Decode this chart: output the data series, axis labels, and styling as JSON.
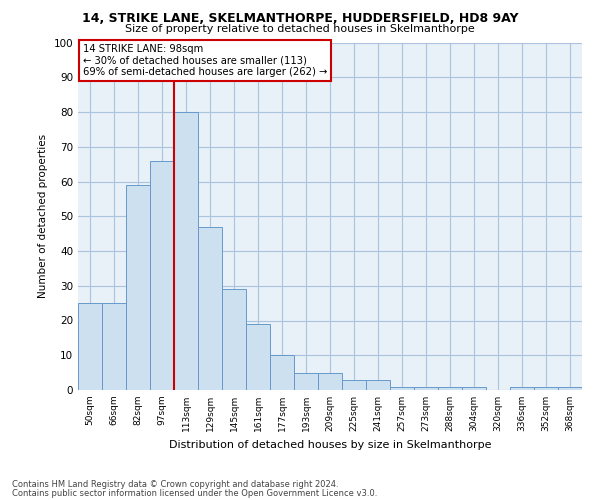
{
  "title1": "14, STRIKE LANE, SKELMANTHORPE, HUDDERSFIELD, HD8 9AY",
  "title2": "Size of property relative to detached houses in Skelmanthorpe",
  "xlabel": "Distribution of detached houses by size in Skelmanthorpe",
  "ylabel": "Number of detached properties",
  "categories": [
    "50sqm",
    "66sqm",
    "82sqm",
    "97sqm",
    "113sqm",
    "129sqm",
    "145sqm",
    "161sqm",
    "177sqm",
    "193sqm",
    "209sqm",
    "225sqm",
    "241sqm",
    "257sqm",
    "273sqm",
    "288sqm",
    "304sqm",
    "320sqm",
    "336sqm",
    "352sqm",
    "368sqm"
  ],
  "values": [
    25,
    25,
    59,
    66,
    80,
    47,
    29,
    19,
    10,
    5,
    5,
    3,
    3,
    1,
    1,
    1,
    1,
    0,
    1,
    1,
    1
  ],
  "bar_color": "#cce0f0",
  "bar_edge_color": "#6699cc",
  "annotation_box_text_line1": "14 STRIKE LANE: 98sqm",
  "annotation_box_text_line2": "← 30% of detached houses are smaller (113)",
  "annotation_box_text_line3": "69% of semi-detached houses are larger (262) →",
  "annotation_box_color": "white",
  "annotation_box_edge_color": "#cc0000",
  "vline_color": "#cc0000",
  "vline_x_index": 3.5,
  "ylim": [
    0,
    100
  ],
  "yticks": [
    0,
    10,
    20,
    30,
    40,
    50,
    60,
    70,
    80,
    90,
    100
  ],
  "grid_color": "#aac4dd",
  "background_color": "#e8f0f8",
  "footer1": "Contains HM Land Registry data © Crown copyright and database right 2024.",
  "footer2": "Contains public sector information licensed under the Open Government Licence v3.0."
}
